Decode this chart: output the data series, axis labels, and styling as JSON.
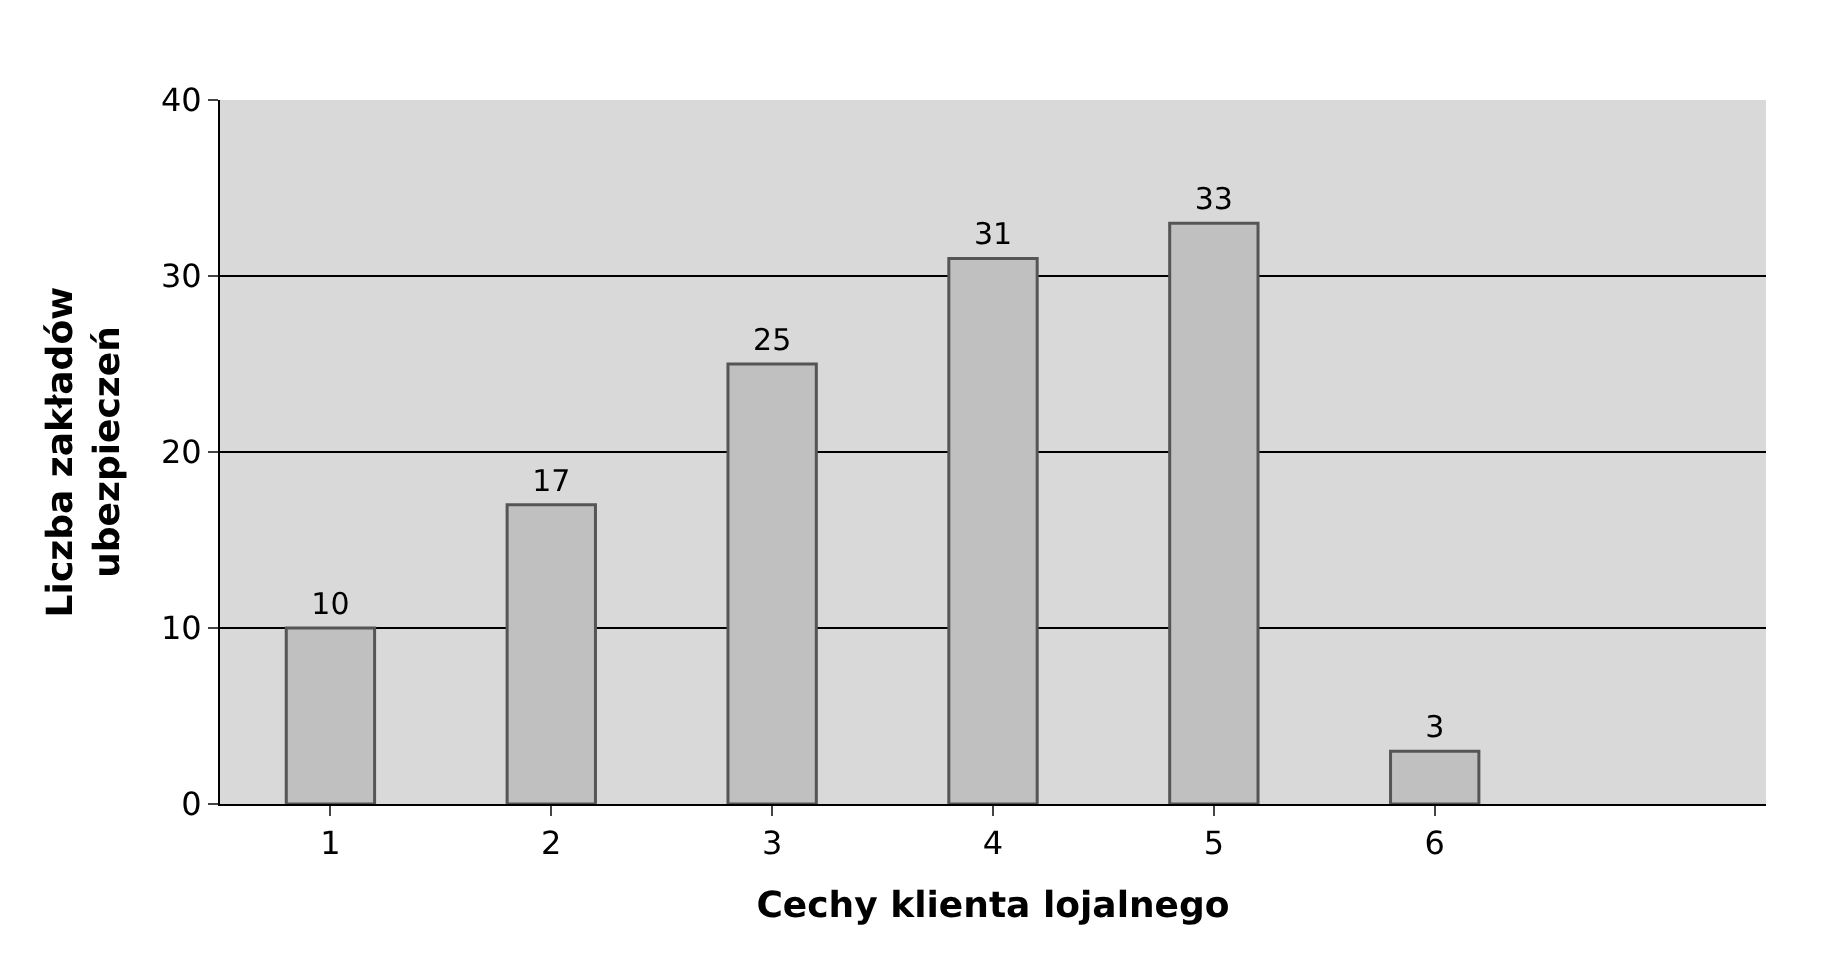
{
  "chart_data": {
    "type": "bar",
    "xlabel": "Cechy klienta lojalnego",
    "ylabel": "Liczba zakładów\nubezpieczeń",
    "categories": [
      "1",
      "2",
      "3",
      "4",
      "5",
      "6",
      null
    ],
    "values": [
      10,
      17,
      25,
      31,
      33,
      3,
      null
    ],
    "color": "#c0c0c0",
    "ylim": [
      0,
      40
    ],
    "yticks": [
      0,
      10,
      20,
      30,
      40
    ],
    "grid": "y",
    "data_labels": true,
    "legend": false
  }
}
